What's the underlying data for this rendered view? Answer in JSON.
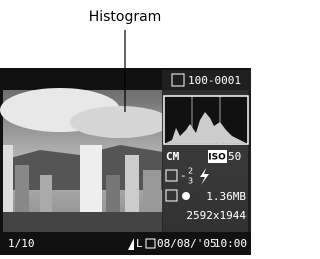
{
  "annotation": {
    "label": "Histogram"
  },
  "screen": {
    "folder_file": "100-0001",
    "mode": "CM",
    "iso_label": "ISO",
    "iso_value": "50",
    "exposure_sign": "-",
    "exposure_numerator": "2",
    "exposure_denominator": "3",
    "file_size": "1.36MB",
    "resolution": "2592x1944",
    "image_number": "1/10",
    "quality": "L",
    "date": "08/08/'05",
    "time": "10:00"
  }
}
